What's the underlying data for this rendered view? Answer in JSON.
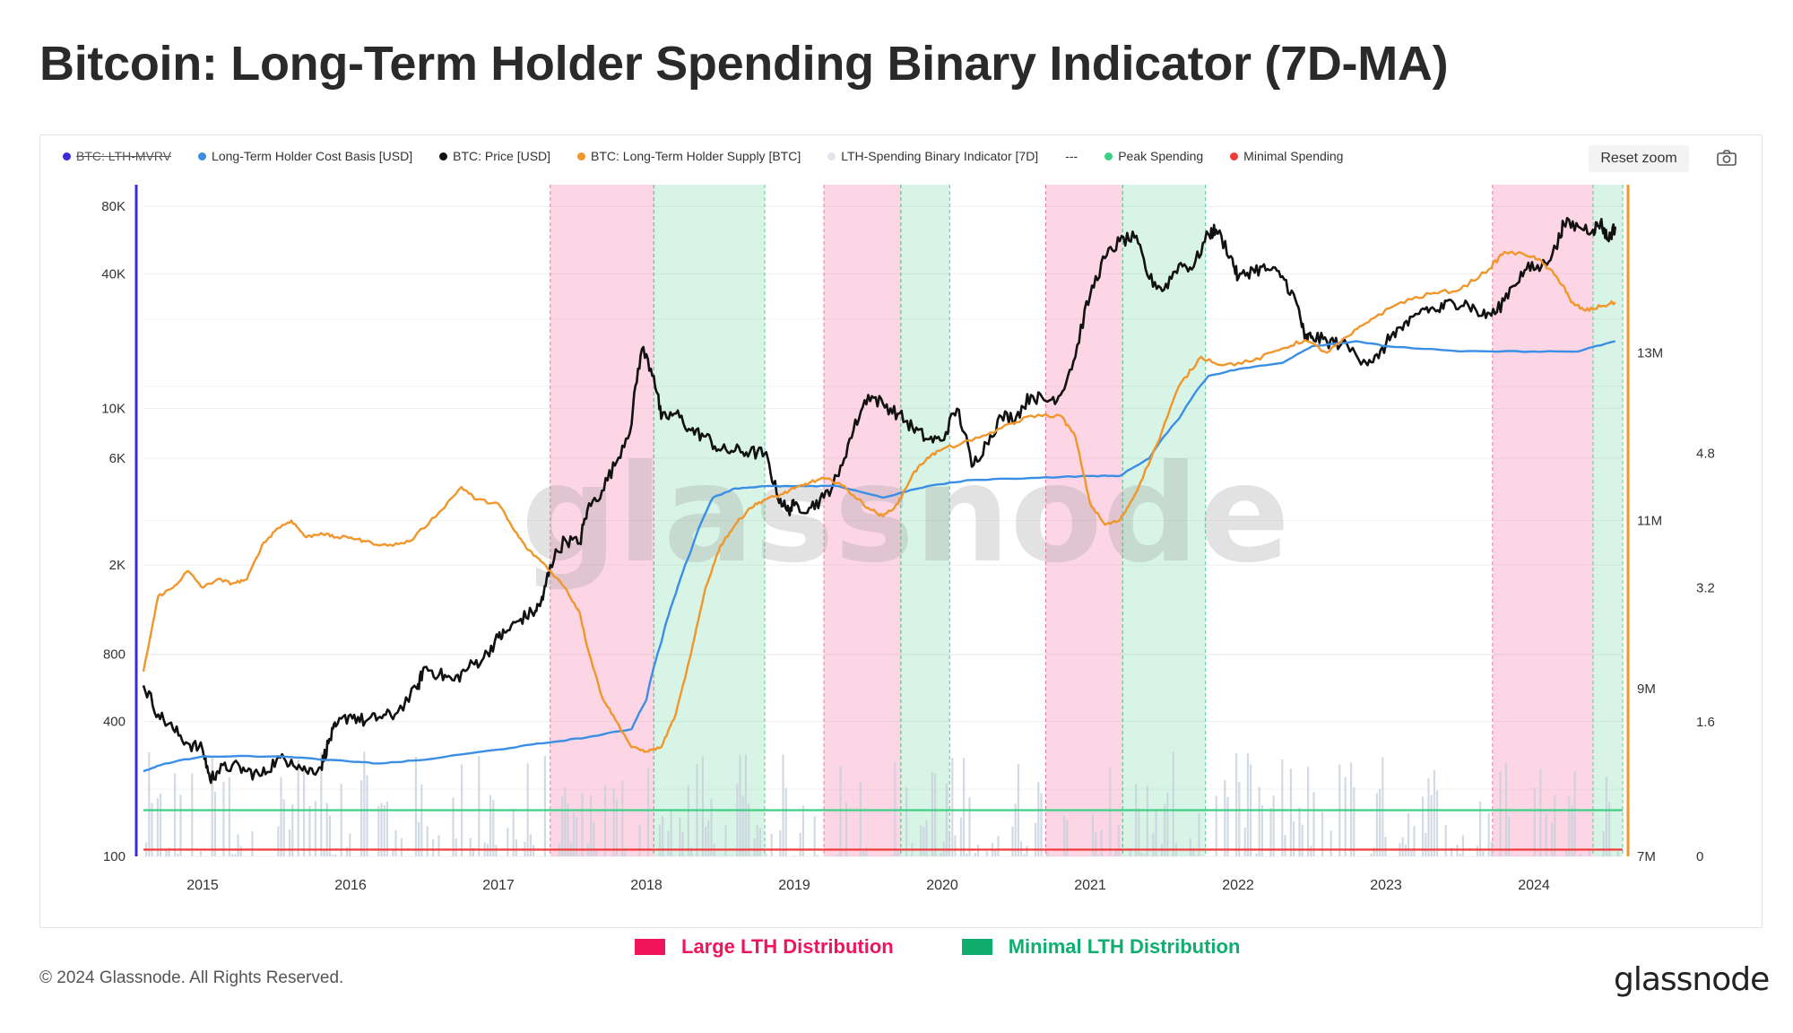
{
  "title": "Bitcoin: Long-Term Holder Spending Binary Indicator (7D-MA)",
  "legend": [
    {
      "label": "BTC: LTH-MVRV",
      "color": "#3b2bd9",
      "disabled": true,
      "kind": "dot"
    },
    {
      "label": "Long-Term Holder Cost Basis [USD]",
      "color": "#3a8ee6",
      "disabled": false,
      "kind": "dot"
    },
    {
      "label": "BTC: Price [USD]",
      "color": "#111111",
      "disabled": false,
      "kind": "dot"
    },
    {
      "label": "BTC: Long-Term Holder Supply [BTC]",
      "color": "#f0962b",
      "disabled": false,
      "kind": "dot"
    },
    {
      "label": "LTH-Spending Binary Indicator [7D]",
      "color": "#dfe5ec",
      "disabled": false,
      "kind": "dot"
    },
    {
      "label": "---",
      "color": "#555555",
      "disabled": false,
      "kind": "text"
    },
    {
      "label": "Peak Spending",
      "color": "#3ecf85",
      "disabled": false,
      "kind": "dot"
    },
    {
      "label": "Minimal Spending",
      "color": "#ef3b3b",
      "disabled": false,
      "kind": "dot"
    }
  ],
  "reset_zoom": "Reset zoom",
  "bottom_legend": [
    {
      "label": "Large LTH Distribution",
      "color": "#f0145a"
    },
    {
      "label": "Minimal LTH Distribution",
      "color": "#0fae6e"
    }
  ],
  "footer": {
    "copyright": "© 2024 Glassnode. All Rights Reserved.",
    "brand": "glassnode"
  },
  "watermark": "glassnode",
  "chart_data": {
    "type": "line",
    "title": "Bitcoin: Long-Term Holder Spending Binary Indicator (7D-MA)",
    "x_ticks": [
      "2015",
      "2016",
      "2017",
      "2018",
      "2019",
      "2020",
      "2021",
      "2022",
      "2023",
      "2024"
    ],
    "x_range": [
      2014.6,
      2024.6
    ],
    "y_left": {
      "scale": "log",
      "range": [
        100,
        100000
      ],
      "ticks": [
        {
          "v": 80000,
          "label": "80K"
        },
        {
          "v": 40000,
          "label": "40K"
        },
        {
          "v": 10000,
          "label": "10K"
        },
        {
          "v": 6000,
          "label": "6K"
        },
        {
          "v": 2000,
          "label": "2K"
        },
        {
          "v": 800,
          "label": "800"
        },
        {
          "v": 400,
          "label": "400"
        },
        {
          "v": 100,
          "label": "100"
        }
      ]
    },
    "y_supply": {
      "range": [
        7000000,
        15000000
      ],
      "ticks": [
        {
          "v": 13000000,
          "label": "13M"
        },
        {
          "v": 11000000,
          "label": "11M"
        },
        {
          "v": 9000000,
          "label": "9M"
        },
        {
          "v": 7000000,
          "label": "7M"
        }
      ]
    },
    "y_mvrv": {
      "range": [
        0,
        8
      ],
      "ticks": [
        {
          "v": 4.8,
          "label": "4.8"
        },
        {
          "v": 3.2,
          "label": "3.2"
        },
        {
          "v": 1.6,
          "label": "1.6"
        },
        {
          "v": 0,
          "label": "0"
        }
      ]
    },
    "regions": [
      {
        "kind": "large",
        "start": 2017.35,
        "end": 2018.05
      },
      {
        "kind": "minimal",
        "start": 2018.05,
        "end": 2018.8
      },
      {
        "kind": "large",
        "start": 2019.2,
        "end": 2019.72
      },
      {
        "kind": "minimal",
        "start": 2019.72,
        "end": 2020.05
      },
      {
        "kind": "large",
        "start": 2020.7,
        "end": 2021.22
      },
      {
        "kind": "minimal",
        "start": 2021.22,
        "end": 2021.78
      },
      {
        "kind": "large",
        "start": 2023.72,
        "end": 2024.4
      },
      {
        "kind": "minimal",
        "start": 2024.4,
        "end": 2024.6
      }
    ],
    "thresholds": [
      {
        "name": "Peak Spending",
        "value": 0.55,
        "axis": "mvrv"
      },
      {
        "name": "Minimal Spending",
        "value": 0.08,
        "axis": "mvrv"
      }
    ],
    "series": [
      {
        "name": "BTC: Price [USD]",
        "axis": "left",
        "color": "#111111",
        "points": [
          [
            2014.6,
            580
          ],
          [
            2014.7,
            430
          ],
          [
            2014.8,
            370
          ],
          [
            2014.9,
            320
          ],
          [
            2015.0,
            300
          ],
          [
            2015.05,
            220
          ],
          [
            2015.1,
            240
          ],
          [
            2015.2,
            255
          ],
          [
            2015.3,
            240
          ],
          [
            2015.4,
            230
          ],
          [
            2015.5,
            270
          ],
          [
            2015.6,
            270
          ],
          [
            2015.7,
            240
          ],
          [
            2015.8,
            250
          ],
          [
            2015.85,
            320
          ],
          [
            2015.9,
            380
          ],
          [
            2016.0,
            430
          ],
          [
            2016.1,
            400
          ],
          [
            2016.2,
            420
          ],
          [
            2016.3,
            430
          ],
          [
            2016.45,
            560
          ],
          [
            2016.5,
            700
          ],
          [
            2016.6,
            650
          ],
          [
            2016.7,
            610
          ],
          [
            2016.8,
            700
          ],
          [
            2016.9,
            770
          ],
          [
            2017.0,
            950
          ],
          [
            2017.05,
            1000
          ],
          [
            2017.15,
            1150
          ],
          [
            2017.25,
            1250
          ],
          [
            2017.3,
            1400
          ],
          [
            2017.35,
            2000
          ],
          [
            2017.45,
            2600
          ],
          [
            2017.55,
            2500
          ],
          [
            2017.6,
            3500
          ],
          [
            2017.7,
            4300
          ],
          [
            2017.8,
            5800
          ],
          [
            2017.9,
            8500
          ],
          [
            2017.97,
            18500
          ],
          [
            2018.05,
            14000
          ],
          [
            2018.1,
            9000
          ],
          [
            2018.2,
            9500
          ],
          [
            2018.3,
            8000
          ],
          [
            2018.4,
            7500
          ],
          [
            2018.5,
            6500
          ],
          [
            2018.6,
            6500
          ],
          [
            2018.7,
            6400
          ],
          [
            2018.8,
            6300
          ],
          [
            2018.88,
            4200
          ],
          [
            2018.95,
            3500
          ],
          [
            2019.0,
            3700
          ],
          [
            2019.1,
            3600
          ],
          [
            2019.2,
            4000
          ],
          [
            2019.3,
            5000
          ],
          [
            2019.4,
            8000
          ],
          [
            2019.5,
            11500
          ],
          [
            2019.6,
            10500
          ],
          [
            2019.7,
            9500
          ],
          [
            2019.8,
            8200
          ],
          [
            2019.9,
            7300
          ],
          [
            2020.0,
            7200
          ],
          [
            2020.1,
            10000
          ],
          [
            2020.2,
            5500
          ],
          [
            2020.3,
            7000
          ],
          [
            2020.4,
            9200
          ],
          [
            2020.5,
            9200
          ],
          [
            2020.6,
            11500
          ],
          [
            2020.7,
            10800
          ],
          [
            2020.8,
            11500
          ],
          [
            2020.9,
            17000
          ],
          [
            2021.0,
            32000
          ],
          [
            2021.1,
            47000
          ],
          [
            2021.2,
            56000
          ],
          [
            2021.3,
            58000
          ],
          [
            2021.4,
            38000
          ],
          [
            2021.5,
            34000
          ],
          [
            2021.6,
            44000
          ],
          [
            2021.7,
            43000
          ],
          [
            2021.8,
            60000
          ],
          [
            2021.85,
            63000
          ],
          [
            2021.95,
            48000
          ],
          [
            2022.0,
            38000
          ],
          [
            2022.1,
            42000
          ],
          [
            2022.2,
            42000
          ],
          [
            2022.3,
            39000
          ],
          [
            2022.4,
            29000
          ],
          [
            2022.45,
            20500
          ],
          [
            2022.5,
            21000
          ],
          [
            2022.6,
            20000
          ],
          [
            2022.7,
            19500
          ],
          [
            2022.85,
            16500
          ],
          [
            2022.95,
            16800
          ],
          [
            2023.05,
            22000
          ],
          [
            2023.15,
            23500
          ],
          [
            2023.25,
            28000
          ],
          [
            2023.35,
            27500
          ],
          [
            2023.45,
            30000
          ],
          [
            2023.55,
            29500
          ],
          [
            2023.65,
            26000
          ],
          [
            2023.75,
            27000
          ],
          [
            2023.85,
            35000
          ],
          [
            2023.95,
            42000
          ],
          [
            2024.05,
            43000
          ],
          [
            2024.15,
            52000
          ],
          [
            2024.2,
            67000
          ],
          [
            2024.3,
            65000
          ],
          [
            2024.4,
            63000
          ],
          [
            2024.45,
            68000
          ],
          [
            2024.5,
            57000
          ],
          [
            2024.55,
            65000
          ]
        ]
      },
      {
        "name": "Long-Term Holder Cost Basis [USD]",
        "axis": "left",
        "color": "#3a8ee6",
        "points": [
          [
            2014.6,
            240
          ],
          [
            2014.75,
            260
          ],
          [
            2015.0,
            280
          ],
          [
            2015.5,
            280
          ],
          [
            2016.0,
            265
          ],
          [
            2016.2,
            260
          ],
          [
            2016.5,
            270
          ],
          [
            2017.0,
            300
          ],
          [
            2017.3,
            320
          ],
          [
            2017.6,
            340
          ],
          [
            2017.9,
            370
          ],
          [
            2018.0,
            500
          ],
          [
            2018.1,
            900
          ],
          [
            2018.2,
            1500
          ],
          [
            2018.3,
            2300
          ],
          [
            2018.45,
            4000
          ],
          [
            2018.6,
            4400
          ],
          [
            2018.8,
            4500
          ],
          [
            2019.0,
            4500
          ],
          [
            2019.3,
            4500
          ],
          [
            2019.6,
            4000
          ],
          [
            2019.9,
            4500
          ],
          [
            2020.2,
            4800
          ],
          [
            2020.6,
            4900
          ],
          [
            2021.0,
            5000
          ],
          [
            2021.2,
            5000
          ],
          [
            2021.4,
            6000
          ],
          [
            2021.6,
            9000
          ],
          [
            2021.8,
            14000
          ],
          [
            2022.0,
            15000
          ],
          [
            2022.3,
            16000
          ],
          [
            2022.5,
            19000
          ],
          [
            2022.8,
            20000
          ],
          [
            2023.0,
            19000
          ],
          [
            2023.5,
            18000
          ],
          [
            2024.0,
            18000
          ],
          [
            2024.3,
            18000
          ],
          [
            2024.55,
            20000
          ]
        ]
      },
      {
        "name": "BTC: Long-Term Holder Supply [BTC]",
        "axis": "supply",
        "color": "#f0962b",
        "points": [
          [
            2014.6,
            9200
          ],
          [
            2014.7,
            10100
          ],
          [
            2014.8,
            10200
          ],
          [
            2014.9,
            10400
          ],
          [
            2015.0,
            10200
          ],
          [
            2015.1,
            10300
          ],
          [
            2015.2,
            10250
          ],
          [
            2015.3,
            10300
          ],
          [
            2015.4,
            10700
          ],
          [
            2015.5,
            10900
          ],
          [
            2015.6,
            11000
          ],
          [
            2015.7,
            10800
          ],
          [
            2015.8,
            10850
          ],
          [
            2015.9,
            10800
          ],
          [
            2016.0,
            10800
          ],
          [
            2016.1,
            10750
          ],
          [
            2016.25,
            10700
          ],
          [
            2016.4,
            10750
          ],
          [
            2016.6,
            11100
          ],
          [
            2016.75,
            11400
          ],
          [
            2016.85,
            11250
          ],
          [
            2017.0,
            11200
          ],
          [
            2017.1,
            10900
          ],
          [
            2017.2,
            10650
          ],
          [
            2017.3,
            10500
          ],
          [
            2017.45,
            10200
          ],
          [
            2017.55,
            9900
          ],
          [
            2017.6,
            9500
          ],
          [
            2017.7,
            8900
          ],
          [
            2017.8,
            8600
          ],
          [
            2017.9,
            8300
          ],
          [
            2018.0,
            8250
          ],
          [
            2018.1,
            8300
          ],
          [
            2018.2,
            8700
          ],
          [
            2018.3,
            9400
          ],
          [
            2018.4,
            10200
          ],
          [
            2018.5,
            10700
          ],
          [
            2018.6,
            10950
          ],
          [
            2018.7,
            11150
          ],
          [
            2018.8,
            11250
          ],
          [
            2018.9,
            11300
          ],
          [
            2019.0,
            11380
          ],
          [
            2019.1,
            11450
          ],
          [
            2019.2,
            11500
          ],
          [
            2019.3,
            11450
          ],
          [
            2019.4,
            11300
          ],
          [
            2019.5,
            11150
          ],
          [
            2019.6,
            11050
          ],
          [
            2019.7,
            11200
          ],
          [
            2019.8,
            11550
          ],
          [
            2019.9,
            11750
          ],
          [
            2020.0,
            11850
          ],
          [
            2020.2,
            11950
          ],
          [
            2020.4,
            12100
          ],
          [
            2020.6,
            12250
          ],
          [
            2020.8,
            12250
          ],
          [
            2020.9,
            12000
          ],
          [
            2021.0,
            11200
          ],
          [
            2021.1,
            10950
          ],
          [
            2021.2,
            11000
          ],
          [
            2021.3,
            11300
          ],
          [
            2021.45,
            11900
          ],
          [
            2021.6,
            12600
          ],
          [
            2021.75,
            12950
          ],
          [
            2021.9,
            12850
          ],
          [
            2022.1,
            12900
          ],
          [
            2022.3,
            13050
          ],
          [
            2022.45,
            13150
          ],
          [
            2022.6,
            13000
          ],
          [
            2022.75,
            13200
          ],
          [
            2022.9,
            13400
          ],
          [
            2023.1,
            13600
          ],
          [
            2023.3,
            13700
          ],
          [
            2023.5,
            13750
          ],
          [
            2023.7,
            14000
          ],
          [
            2023.8,
            14200
          ],
          [
            2024.0,
            14150
          ],
          [
            2024.1,
            14000
          ],
          [
            2024.2,
            13800
          ],
          [
            2024.25,
            13600
          ],
          [
            2024.35,
            13500
          ],
          [
            2024.45,
            13550
          ],
          [
            2024.55,
            13600
          ]
        ]
      }
    ],
    "supply_unit": "thousand BTC",
    "bar_series": {
      "name": "LTH-Spending Binary Indicator [7D]",
      "color": "#c7d1dc",
      "axis": "mvrv"
    }
  }
}
